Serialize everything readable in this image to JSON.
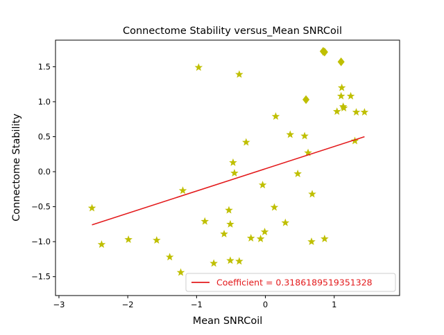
{
  "chart_data": {
    "type": "scatter",
    "title": "Connectome Stability versus_Mean SNRCoil",
    "xlabel": "Mean SNRCoil",
    "ylabel": "Connectome Stability",
    "xlim": [
      -3.05,
      1.95
    ],
    "ylim": [
      -1.77,
      1.88
    ],
    "xticks": [
      -3,
      -2,
      -1,
      0,
      1
    ],
    "xtick_labels": [
      "−3",
      "−2",
      "−1",
      "0",
      "1"
    ],
    "yticks": [
      -1.5,
      -1.0,
      -0.5,
      0.0,
      0.5,
      1.0,
      1.5
    ],
    "ytick_labels": [
      "−1.5",
      "−1.0",
      "−0.5",
      "0.0",
      "0.5",
      "1.0",
      "1.5"
    ],
    "grid": false,
    "legend_position": "lower-right",
    "marker_color": "#bfbf00",
    "line_color": "#e31a1c",
    "legend_text_color": "#e31a1c",
    "points": [
      {
        "x": -2.52,
        "y": -0.52
      },
      {
        "x": -2.38,
        "y": -1.04
      },
      {
        "x": -1.99,
        "y": -0.97
      },
      {
        "x": -1.58,
        "y": -0.98
      },
      {
        "x": -1.39,
        "y": -1.22
      },
      {
        "x": -1.23,
        "y": -1.44
      },
      {
        "x": -1.2,
        "y": -0.27
      },
      {
        "x": -0.97,
        "y": 1.49
      },
      {
        "x": -0.88,
        "y": -0.71
      },
      {
        "x": -0.75,
        "y": -1.31
      },
      {
        "x": -0.6,
        "y": -0.89
      },
      {
        "x": -0.53,
        "y": -0.55
      },
      {
        "x": -0.51,
        "y": -0.75
      },
      {
        "x": -0.51,
        "y": -1.27
      },
      {
        "x": -0.47,
        "y": 0.13
      },
      {
        "x": -0.45,
        "y": -0.02
      },
      {
        "x": -0.38,
        "y": 1.39
      },
      {
        "x": -0.38,
        "y": -1.28
      },
      {
        "x": -0.28,
        "y": 0.42
      },
      {
        "x": -0.21,
        "y": -0.95
      },
      {
        "x": -0.07,
        "y": -0.96
      },
      {
        "x": -0.04,
        "y": -0.19
      },
      {
        "x": -0.01,
        "y": -0.86
      },
      {
        "x": 0.13,
        "y": -0.51
      },
      {
        "x": 0.15,
        "y": 0.79
      },
      {
        "x": 0.29,
        "y": -0.73
      },
      {
        "x": 0.36,
        "y": 0.53
      },
      {
        "x": 0.47,
        "y": -0.03
      },
      {
        "x": 0.57,
        "y": 0.51
      },
      {
        "x": 0.62,
        "y": 0.27
      },
      {
        "x": 0.67,
        "y": -1.0
      },
      {
        "x": 0.68,
        "y": -0.32
      },
      {
        "x": 0.86,
        "y": -0.96
      },
      {
        "x": 1.04,
        "y": 0.86
      },
      {
        "x": 1.1,
        "y": 1.08
      },
      {
        "x": 1.11,
        "y": 1.2
      },
      {
        "x": 1.13,
        "y": 0.93
      },
      {
        "x": 1.14,
        "y": 0.91
      },
      {
        "x": 1.24,
        "y": 1.08
      },
      {
        "x": 1.3,
        "y": 0.44
      },
      {
        "x": 1.32,
        "y": 0.85
      },
      {
        "x": 1.44,
        "y": 0.85
      }
    ],
    "diamonds": [
      {
        "x": 0.59,
        "y": 1.03
      },
      {
        "x": 0.84,
        "y": 1.72
      },
      {
        "x": 0.86,
        "y": 1.71
      },
      {
        "x": 1.1,
        "y": 1.57
      }
    ],
    "fit_line": {
      "x": [
        -2.52,
        1.44
      ],
      "y": [
        -0.76,
        0.5
      ],
      "label": "Coefficient = 0.3186189519351328"
    }
  }
}
